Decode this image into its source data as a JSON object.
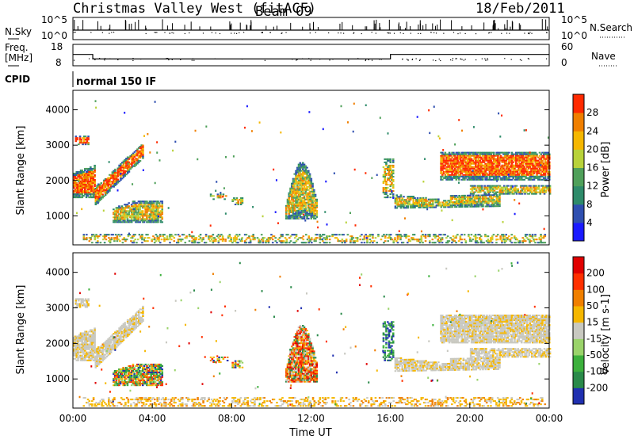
{
  "header": {
    "title": "Christmas Valley West (fitACF)",
    "beam": "Beam 09",
    "date": "18/Feb/2011"
  },
  "chart_data": [
    {
      "type": "line",
      "title": "",
      "left_label": "N.Sky",
      "right_label": "N.Search",
      "left_ticks": [
        "10^5",
        "10^0"
      ],
      "right_ticks": [
        "10^5",
        "10^0"
      ]
    },
    {
      "type": "line",
      "left_label_lines": [
        "Freq.",
        "[MHz]"
      ],
      "right_label": "Nave",
      "left_ticks": [
        "18",
        "8"
      ],
      "right_ticks": [
        "60",
        "0"
      ],
      "freq_series": {
        "x": [
          0,
          1,
          1,
          16,
          16,
          24
        ],
        "y": [
          13.3,
          13.3,
          11.2,
          11.2,
          13.3,
          13.3
        ]
      }
    },
    {
      "type": "table",
      "label": "CPID",
      "value": "normal 150 IF"
    },
    {
      "type": "heatmap",
      "ylabel": "Slant Range [km]",
      "ylim": [
        180,
        4550
      ],
      "yticks": [
        1000,
        2000,
        3000,
        4000
      ],
      "xlim": [
        0,
        24
      ],
      "colorbar_label": "Power [dB]",
      "colorbar_ticks": [
        "4",
        "8",
        "12",
        "16",
        "20",
        "24",
        "28"
      ],
      "colors": [
        "#1a1aff",
        "#2f4fb0",
        "#2e8b6a",
        "#4fa05a",
        "#b8d23a",
        "#f5b700",
        "#f07f00",
        "#ff2a00"
      ]
    },
    {
      "type": "heatmap",
      "ylabel": "Slant Range [km]",
      "xlabel": "Time UT",
      "ylim": [
        180,
        4550
      ],
      "yticks": [
        1000,
        2000,
        3000,
        4000
      ],
      "xlim": [
        0,
        24
      ],
      "xticks": [
        "00:00",
        "04:00",
        "08:00",
        "12:00",
        "16:00",
        "20:00",
        "00:00"
      ],
      "colorbar_label": "Velocity [m s-1]",
      "colorbar_ticks": [
        "200",
        "100",
        "50",
        "15",
        "-15",
        "-50",
        "-100",
        "-200"
      ],
      "colors": [
        "#2030b0",
        "#2a8a4a",
        "#3cb03c",
        "#9ad36a",
        "#c8c8c0",
        "#f5b700",
        "#f07f00",
        "#ff3000",
        "#e00000"
      ]
    }
  ]
}
